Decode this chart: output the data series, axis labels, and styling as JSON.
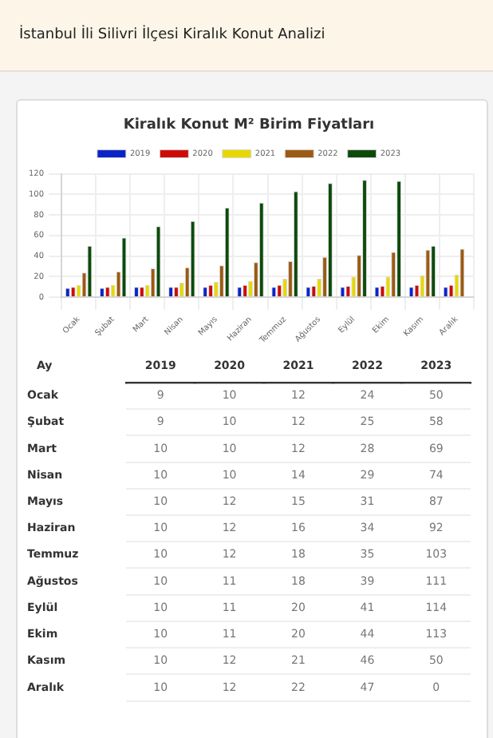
{
  "chart_data": [
    {
      "type": "bar",
      "title": "Kiralık Konut M² Birim Fiyatları",
      "annotations": [
        "İstanbul İli Silivri İlçesi Kiralık Konut Analizi"
      ],
      "categories": [
        "Ocak",
        "Şubat",
        "Mart",
        "Nisan",
        "Mayıs",
        "Haziran",
        "Temmuz",
        "Ağustos",
        "Eylül",
        "Ekim",
        "Kasım",
        "Aralık"
      ],
      "series": [
        {
          "name": "2019",
          "color": "#0a24c8",
          "values": [
            9,
            9,
            10,
            10,
            10,
            10,
            10,
            10,
            10,
            10,
            10,
            10
          ]
        },
        {
          "name": "2020",
          "color": "#cc0a0a",
          "values": [
            10,
            10,
            10,
            10,
            12,
            12,
            12,
            11,
            11,
            11,
            12,
            12
          ]
        },
        {
          "name": "2021",
          "color": "#e6d800",
          "values": [
            12,
            12,
            12,
            14,
            15,
            16,
            18,
            18,
            20,
            20,
            21,
            22
          ]
        },
        {
          "name": "2022",
          "color": "#9c5a12",
          "values": [
            24,
            25,
            28,
            29,
            31,
            34,
            35,
            39,
            41,
            44,
            46,
            47
          ]
        },
        {
          "name": "2023",
          "color": "#0c4a0c",
          "values": [
            50,
            58,
            69,
            74,
            87,
            92,
            103,
            111,
            114,
            113,
            50,
            0
          ]
        }
      ],
      "ylim": [
        0,
        120
      ],
      "yticks": [
        0,
        20,
        40,
        60,
        80,
        100,
        120
      ],
      "grid": true,
      "legend": "top"
    },
    {
      "type": "heatmap",
      "ylabel": "Ay",
      "data_labels": true,
      "categories": [
        "2019",
        "2020",
        "2021",
        "2022",
        "2023"
      ],
      "y_categories": [
        "Ocak",
        "Şubat",
        "Mart",
        "Nisan",
        "Mayıs",
        "Haziran",
        "Temmuz",
        "Ağustos",
        "Eylül",
        "Ekim",
        "Kasım",
        "Aralık"
      ],
      "cells": [
        [
          9,
          10,
          12,
          24,
          50
        ],
        [
          9,
          10,
          12,
          25,
          58
        ],
        [
          10,
          10,
          12,
          28,
          69
        ],
        [
          10,
          10,
          14,
          29,
          74
        ],
        [
          10,
          12,
          15,
          31,
          87
        ],
        [
          10,
          12,
          16,
          34,
          92
        ],
        [
          10,
          12,
          18,
          35,
          103
        ],
        [
          10,
          11,
          18,
          39,
          111
        ],
        [
          10,
          11,
          20,
          41,
          114
        ],
        [
          10,
          11,
          20,
          44,
          113
        ],
        [
          10,
          12,
          21,
          46,
          50
        ],
        [
          10,
          12,
          22,
          47,
          0
        ]
      ]
    }
  ]
}
